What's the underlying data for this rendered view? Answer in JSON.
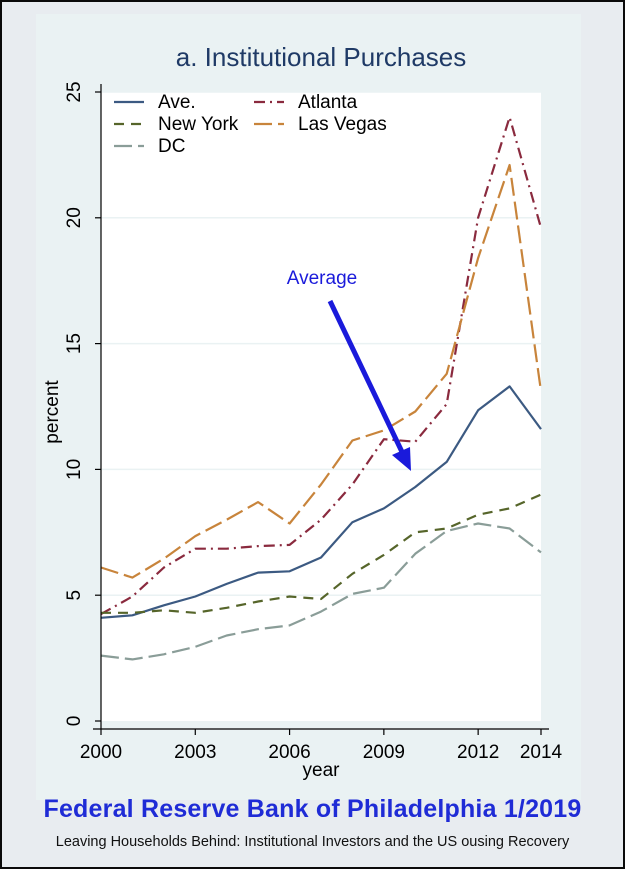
{
  "footer": {
    "title": "Federal Reserve Bank of Philadelphia 1/2019",
    "subtitle": "Leaving Households Behind: Institutional Investors and the US ousing Recovery"
  },
  "chart_data": {
    "type": "line",
    "title": "a. Institutional Purchases",
    "xlabel": "year",
    "ylabel": "percent",
    "xlim": [
      2000,
      2014
    ],
    "ylim": [
      0,
      25
    ],
    "xticks": [
      2000,
      2003,
      2006,
      2009,
      2012,
      2014
    ],
    "yticks": [
      0,
      5,
      10,
      15,
      20,
      25
    ],
    "grid": true,
    "legend_position": "top-left",
    "x": [
      2000,
      2001,
      2002,
      2003,
      2004,
      2005,
      2006,
      2007,
      2008,
      2009,
      2010,
      2011,
      2012,
      2013,
      2014
    ],
    "series": [
      {
        "name": "Ave.",
        "color": "#3c5a82",
        "dash": "solid",
        "values": [
          4.1,
          4.2,
          4.6,
          4.95,
          5.45,
          5.9,
          5.95,
          6.5,
          7.9,
          8.45,
          9.3,
          10.3,
          12.35,
          13.3,
          11.6
        ]
      },
      {
        "name": "Atlanta",
        "color": "#8a2a3e",
        "dash": "dashdot",
        "values": [
          4.25,
          4.95,
          6.1,
          6.85,
          6.85,
          6.95,
          7.0,
          8.0,
          9.4,
          11.2,
          11.1,
          12.6,
          20.0,
          24.0,
          19.6
        ]
      },
      {
        "name": "New York",
        "color": "#56652a",
        "dash": "dash",
        "values": [
          4.3,
          4.3,
          4.4,
          4.3,
          4.5,
          4.75,
          4.95,
          4.85,
          5.85,
          6.6,
          7.5,
          7.65,
          8.2,
          8.45,
          9.0
        ]
      },
      {
        "name": "Las Vegas",
        "color": "#c8843b",
        "dash": "longdash",
        "values": [
          6.1,
          5.7,
          6.45,
          7.35,
          8.0,
          8.7,
          7.85,
          9.4,
          11.15,
          11.55,
          12.3,
          13.8,
          18.4,
          22.1,
          13.1
        ]
      },
      {
        "name": "DC",
        "color": "#8a9d98",
        "dash": "longdash",
        "values": [
          2.6,
          2.45,
          2.65,
          2.95,
          3.4,
          3.65,
          3.8,
          4.35,
          5.05,
          5.3,
          6.65,
          7.55,
          7.85,
          7.65,
          6.7
        ]
      }
    ],
    "annotations": [
      {
        "text": "Average",
        "color": "#1a1adb"
      }
    ]
  }
}
